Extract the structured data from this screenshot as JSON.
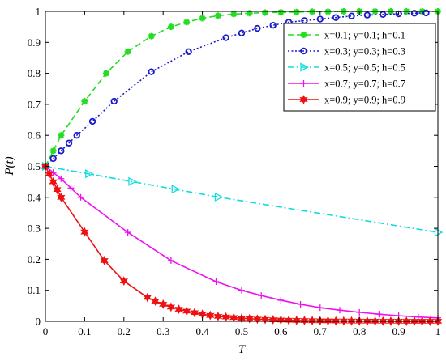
{
  "chart_data": {
    "type": "line",
    "xlabel": "T",
    "ylabel": "P(t)",
    "xlim": [
      0,
      1
    ],
    "ylim": [
      0,
      1
    ],
    "xticks": [
      "0",
      "0.1",
      "0.2",
      "0.3",
      "0.4",
      "0.5",
      "0.6",
      "0.7",
      "0.8",
      "0.9",
      "1"
    ],
    "yticks": [
      "0",
      "0.1",
      "0.2",
      "0.3",
      "0.4",
      "0.5",
      "0.6",
      "0.7",
      "0.8",
      "0.9",
      "1"
    ],
    "grid": false,
    "legend_position": "top-right",
    "series": [
      {
        "name": "x=0.1; y=0.1; h=0.1",
        "color": "#22dd22",
        "line_style": "dashed",
        "marker": "asterisk",
        "x": [
          0,
          0.02,
          0.04,
          0.1,
          0.155,
          0.21,
          0.27,
          0.32,
          0.36,
          0.4,
          0.44,
          0.48,
          0.52,
          0.56,
          0.6,
          0.64,
          0.68,
          0.72,
          0.76,
          0.8,
          0.84,
          0.88,
          0.92,
          0.96,
          1.0
        ],
        "y": [
          0.5,
          0.55,
          0.6,
          0.71,
          0.8,
          0.87,
          0.92,
          0.95,
          0.965,
          0.978,
          0.986,
          0.991,
          0.994,
          0.996,
          0.997,
          0.998,
          0.999,
          0.999,
          1.0,
          1.0,
          1.0,
          1.0,
          1.0,
          1.0,
          1.0
        ]
      },
      {
        "name": "x=0.3; y=0.3; h=0.3",
        "color": "#1a1acc",
        "line_style": "dotted",
        "marker": "circle",
        "x": [
          0,
          0.02,
          0.04,
          0.06,
          0.08,
          0.12,
          0.175,
          0.27,
          0.365,
          0.46,
          0.5,
          0.54,
          0.58,
          0.62,
          0.66,
          0.7,
          0.74,
          0.78,
          0.82,
          0.86,
          0.9,
          0.94,
          0.97
        ],
        "y": [
          0.5,
          0.525,
          0.55,
          0.575,
          0.6,
          0.645,
          0.71,
          0.805,
          0.87,
          0.915,
          0.93,
          0.945,
          0.955,
          0.965,
          0.97,
          0.975,
          0.98,
          0.985,
          0.988,
          0.99,
          0.992,
          0.994,
          0.995
        ]
      },
      {
        "name": "x=0.5; y=0.5; h=0.5",
        "color": "#11dddd",
        "line_style": "dashdot",
        "marker": "triangle-right",
        "x": [
          0,
          0.11,
          0.22,
          0.33,
          0.44,
          1.0
        ],
        "y": [
          0.5,
          0.476,
          0.451,
          0.426,
          0.401,
          0.287
        ]
      },
      {
        "name": "x=0.7; y=0.7; h=0.7",
        "color": "#ee11ee",
        "line_style": "solid",
        "marker": "plus",
        "x": [
          0,
          0.02,
          0.04,
          0.065,
          0.09,
          0.21,
          0.32,
          0.435,
          0.5,
          0.55,
          0.6,
          0.65,
          0.7,
          0.75,
          0.8,
          0.85,
          0.9,
          0.95,
          1.0
        ],
        "y": [
          0.5,
          0.48,
          0.46,
          0.43,
          0.4,
          0.287,
          0.196,
          0.128,
          0.1,
          0.083,
          0.068,
          0.055,
          0.044,
          0.036,
          0.029,
          0.023,
          0.018,
          0.014,
          0.011
        ]
      },
      {
        "name": "x=0.9; y=0.9; h=0.9",
        "color": "#ee1111",
        "line_style": "solid",
        "marker": "hexagram",
        "x": [
          0,
          0.01,
          0.02,
          0.03,
          0.04,
          0.1,
          0.15,
          0.2,
          0.26,
          0.28,
          0.3,
          0.32,
          0.34,
          0.36,
          0.38,
          0.4,
          0.42,
          0.44,
          0.46,
          0.48,
          0.5,
          0.52,
          0.54,
          0.56,
          0.58,
          0.6,
          0.62,
          0.64,
          0.66,
          0.68,
          0.7,
          0.72,
          0.74,
          0.76,
          0.78,
          0.8,
          0.82,
          0.84,
          0.86,
          0.88,
          0.9,
          0.92,
          0.94,
          0.96,
          0.98,
          1.0
        ],
        "y": [
          0.5,
          0.475,
          0.45,
          0.425,
          0.4,
          0.288,
          0.196,
          0.13,
          0.077,
          0.065,
          0.055,
          0.046,
          0.039,
          0.033,
          0.028,
          0.023,
          0.019,
          0.016,
          0.014,
          0.012,
          0.01,
          0.0085,
          0.007,
          0.006,
          0.005,
          0.0042,
          0.0035,
          0.003,
          0.0025,
          0.002,
          0.0017,
          0.0014,
          0.0012,
          0.001,
          0.0008,
          0.0007,
          0.0006,
          0.0005,
          0.0004,
          0.0003,
          0.0003,
          0.0002,
          0.0002,
          0.0001,
          0.0001,
          0.0001
        ]
      }
    ]
  }
}
